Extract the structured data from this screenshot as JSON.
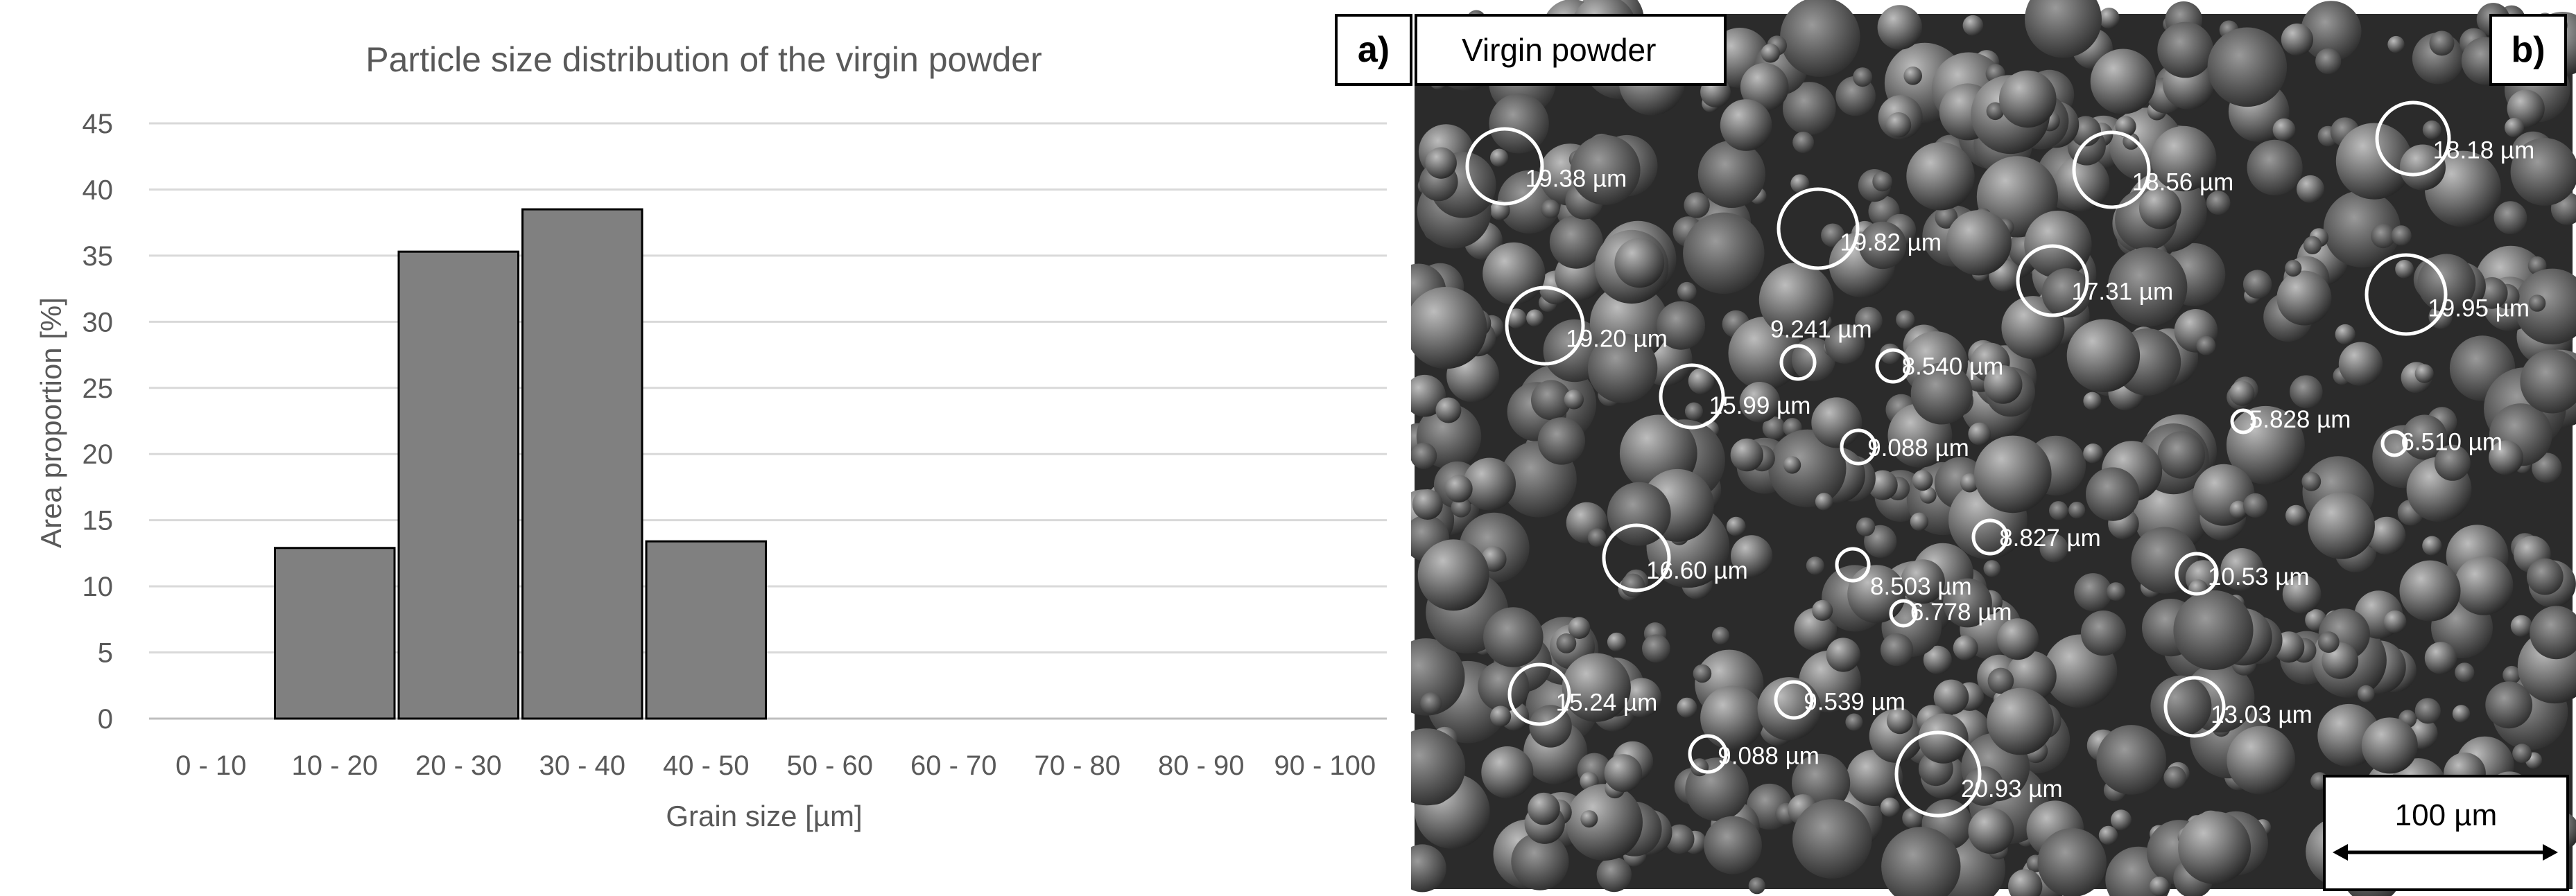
{
  "chart_data": {
    "type": "bar",
    "title": "Particle size distribution of the virgin powder",
    "xlabel": "Grain size [µm]",
    "ylabel": "Area proportion [%]",
    "categories": [
      "0 - 10",
      "10 - 20",
      "20 - 30",
      "30 - 40",
      "40 - 50",
      "50 - 60",
      "60 - 70",
      "70 - 80",
      "80 - 90",
      "90 - 100"
    ],
    "values": [
      0,
      12.9,
      35.3,
      38.5,
      13.4,
      0,
      0,
      0,
      0,
      0
    ],
    "ylim": [
      0,
      45
    ],
    "yticks": [
      0,
      5,
      10,
      15,
      20,
      25,
      30,
      35,
      40,
      45
    ],
    "grid": true,
    "legend": "none",
    "bar_color": "#808080"
  },
  "panels": {
    "a_label": "a)",
    "b_label": "b)",
    "sample": "Virgin powder",
    "scale_bar": "100 µm"
  },
  "measurements": [
    "19.38 µm",
    "19.82 µm",
    "18.56 µm",
    "18.18 µm",
    "17.31 µm",
    "19.95 µm",
    "19.20 µm",
    "9.241 µm",
    "8.540 µm",
    "15.99 µm",
    "9.088 µm",
    "5.828 µm",
    "6.510 µm",
    "16.60 µm",
    "8.503 µm",
    "8.827 µm",
    "6.778 µm",
    "10.53 µm",
    "15.24 µm",
    "9.539 µm",
    "13.03 µm",
    "9.088 µm",
    "20.93 µm"
  ]
}
